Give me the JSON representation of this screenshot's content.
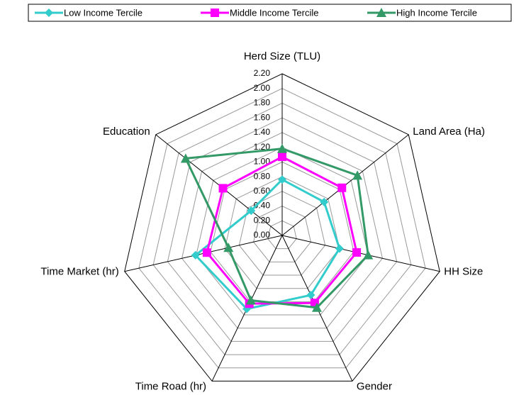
{
  "chart_data": {
    "type": "radar",
    "categories": [
      "Herd Size (TLU)",
      "Land Area (Ha)",
      "HH Size",
      "Gender",
      "Time Road (hr)",
      "Time Market (hr)",
      "Education"
    ],
    "series": [
      {
        "name": "Low Income Tercile",
        "color": "#33cccc",
        "marker": "diamond",
        "values": [
          0.76,
          0.73,
          0.8,
          0.9,
          1.11,
          1.21,
          0.54
        ]
      },
      {
        "name": "Middle Income Tercile",
        "color": "#ff00ff",
        "marker": "square",
        "values": [
          1.07,
          1.04,
          1.04,
          1.02,
          1.03,
          1.05,
          1.03
        ]
      },
      {
        "name": "High Income Tercile",
        "color": "#339966",
        "marker": "triangle",
        "values": [
          1.18,
          1.31,
          1.2,
          1.09,
          0.98,
          0.75,
          1.68
        ]
      }
    ],
    "ylim": [
      0,
      2.2
    ],
    "yticks": [
      {
        "value": 0,
        "label": "0.00"
      },
      {
        "value": 0.2,
        "label": "0.20"
      },
      {
        "value": 0.4,
        "label": "0.40"
      },
      {
        "value": 0.6,
        "label": "0.60"
      },
      {
        "value": 0.8,
        "label": "0.80"
      },
      {
        "value": 1.0,
        "label": "1.00"
      },
      {
        "value": 1.2,
        "label": "1.20"
      },
      {
        "value": 1.4,
        "label": "1.40"
      },
      {
        "value": 1.6,
        "label": "1.60"
      },
      {
        "value": 1.8,
        "label": "1.80"
      },
      {
        "value": 2.0,
        "label": "2.00"
      },
      {
        "value": 2.2,
        "label": "2.20"
      }
    ],
    "grid": true,
    "legend": "top"
  }
}
